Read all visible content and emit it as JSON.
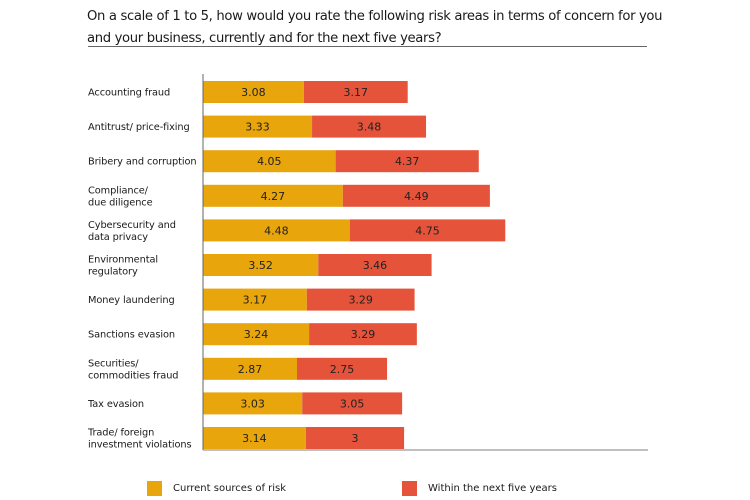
{
  "title": "On a scale of 1 to 5, how would you rate the following risk areas in terms of concern for you and your business, currently and for the next five years?",
  "colors": {
    "current": "#E8A50C",
    "future": "#E5533A",
    "axis": "#666666"
  },
  "legend": {
    "current": "Current sources of risk",
    "future": "Within the next five years"
  },
  "chart_data": {
    "type": "bar",
    "orientation": "horizontal",
    "stacked": true,
    "title": "On a scale of 1 to 5, how would you rate the following risk areas in terms of concern for you and your business, currently and for the next five years?",
    "xlabel": "",
    "ylabel": "",
    "grid": false,
    "legend_position": "bottom",
    "categories": [
      [
        "Accounting fraud"
      ],
      [
        "Antitrust/ price-fixing"
      ],
      [
        "Bribery and corruption"
      ],
      [
        "Compliance/",
        "due diligence"
      ],
      [
        "Cybersecurity and",
        "data privacy"
      ],
      [
        "Environmental",
        "regulatory"
      ],
      [
        "Money laundering"
      ],
      [
        "Sanctions evasion"
      ],
      [
        "Securities/",
        "commodities fraud"
      ],
      [
        "Tax evasion"
      ],
      [
        "Trade/ foreign",
        "investment violations"
      ]
    ],
    "series": [
      {
        "name": "Current sources of risk",
        "key": "current",
        "values": [
          3.08,
          3.33,
          4.05,
          4.27,
          4.48,
          3.52,
          3.17,
          3.24,
          2.87,
          3.03,
          3.14
        ],
        "labels": [
          "3.08",
          "3.33",
          "4.05",
          "4.27",
          "4.48",
          "3.52",
          "3.17",
          "3.24",
          "2.87",
          "3.03",
          "3.14"
        ]
      },
      {
        "name": "Within the next five years",
        "key": "future",
        "values": [
          3.17,
          3.48,
          4.37,
          4.49,
          4.75,
          3.46,
          3.29,
          3.29,
          2.75,
          3.05,
          3.0
        ],
        "labels": [
          "3.17",
          "3.48",
          "4.37",
          "4.49",
          "4.75",
          "3.46",
          "3.29",
          "3.29",
          "2.75",
          "3.05",
          "3"
        ]
      }
    ],
    "xlim": [
      0,
      10
    ]
  }
}
